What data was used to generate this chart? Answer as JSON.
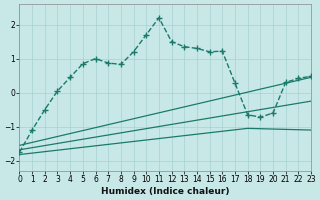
{
  "xlabel": "Humidex (Indice chaleur)",
  "bg_color": "#c8e8e8",
  "grid_color": "#a8d0d0",
  "line_color": "#1a7a6a",
  "xlim": [
    0,
    23
  ],
  "ylim": [
    -2.3,
    2.6
  ],
  "x_ticks": [
    0,
    1,
    2,
    3,
    4,
    5,
    6,
    7,
    8,
    9,
    10,
    11,
    12,
    13,
    14,
    15,
    16,
    17,
    18,
    19,
    20,
    21,
    22,
    23
  ],
  "y_ticks": [
    -2,
    -1,
    0,
    1,
    2
  ],
  "main_x": [
    0,
    1,
    2,
    3,
    4,
    5,
    6,
    7,
    8,
    9,
    10,
    11,
    12,
    13,
    14,
    15,
    16,
    17,
    18,
    19,
    20,
    21,
    22,
    23
  ],
  "main_y": [
    -1.75,
    -1.1,
    -0.5,
    0.05,
    0.45,
    0.85,
    1.0,
    0.87,
    0.83,
    1.2,
    1.7,
    2.2,
    1.5,
    1.35,
    1.3,
    1.2,
    1.22,
    0.28,
    -0.65,
    -0.72,
    -0.6,
    0.3,
    0.42,
    0.48
  ],
  "line2_x": [
    0,
    23
  ],
  "line2_y": [
    -1.55,
    0.45
  ],
  "line3_x": [
    0,
    23
  ],
  "line3_y": [
    -1.68,
    -0.25
  ],
  "line4_x": [
    0,
    18,
    23
  ],
  "line4_y": [
    -1.82,
    -1.05,
    -1.1
  ]
}
